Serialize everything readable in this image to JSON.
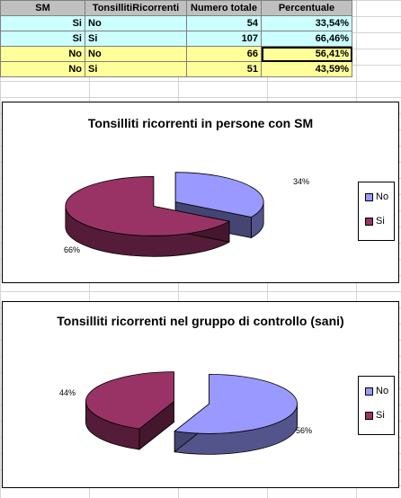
{
  "table": {
    "headers": [
      "SM",
      "TonsillitiRicorrenti",
      "Numero totale",
      "Percentuale"
    ],
    "rows": [
      {
        "sm": "Si",
        "tonsilliti": "No",
        "numero": "54",
        "percentuale": "33,54%"
      },
      {
        "sm": "Si",
        "tonsilliti": "Si",
        "numero": "107",
        "percentuale": "66,46%"
      },
      {
        "sm": "No",
        "tonsilliti": "No",
        "numero": "66",
        "percentuale": "56,41%"
      },
      {
        "sm": "No",
        "tonsilliti": "Si",
        "numero": "51",
        "percentuale": "43,59%"
      }
    ]
  },
  "colors": {
    "no_slice": "#9999ff",
    "si_slice": "#993366",
    "sm_rows_bg": "#ccffff",
    "control_rows_bg": "#ffff99",
    "header_bg": "#c0c0c0"
  },
  "chart_data": [
    {
      "type": "pie",
      "style": "3d-exploded",
      "title": "Tonsilliti ricorrenti in persone con SM",
      "categories": [
        "No",
        "Si"
      ],
      "values": [
        54,
        107
      ],
      "percent_labels": [
        "34%",
        "66%"
      ],
      "legend": {
        "position": "right",
        "entries": [
          "No",
          "Si"
        ]
      }
    },
    {
      "type": "pie",
      "style": "3d-exploded",
      "title": "Tonsilliti ricorrenti nel gruppo di controllo (sani)",
      "categories": [
        "No",
        "Si"
      ],
      "values": [
        66,
        51
      ],
      "percent_labels": [
        "56%",
        "44%"
      ],
      "legend": {
        "position": "right",
        "entries": [
          "No",
          "Si"
        ]
      }
    }
  ]
}
